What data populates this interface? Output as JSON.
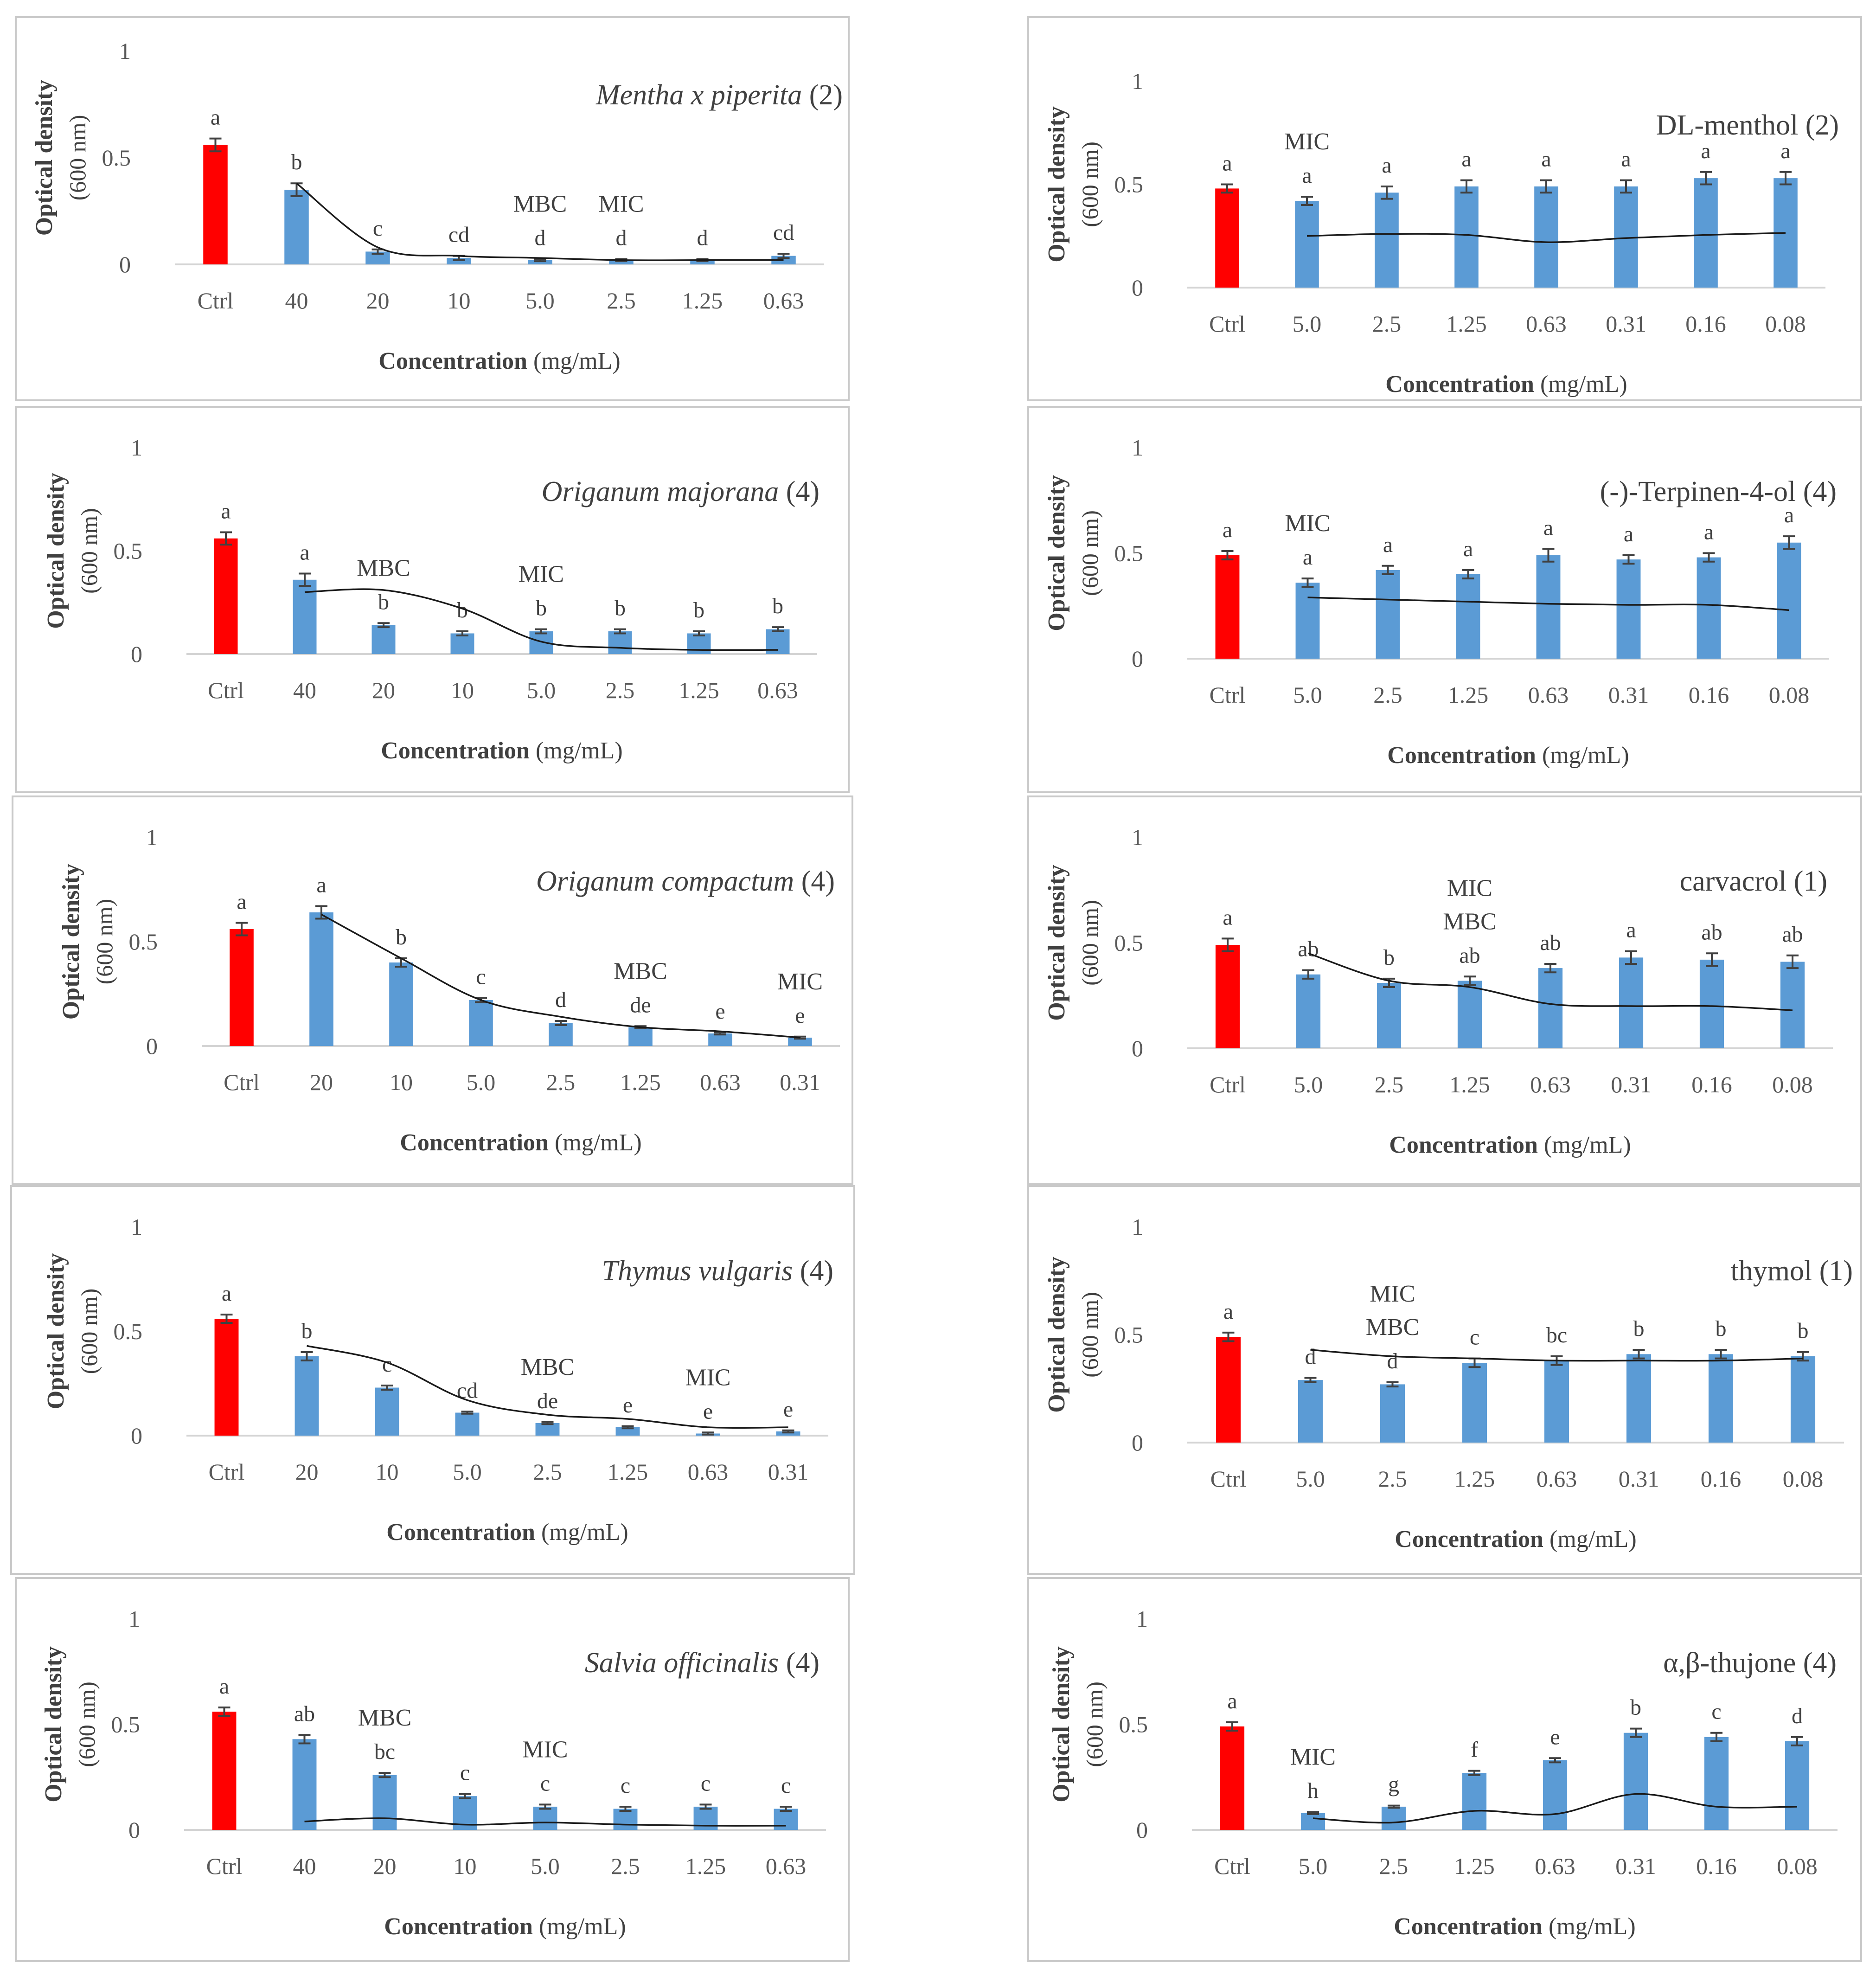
{
  "colors": {
    "control": "#ff0000",
    "treatment": "#5b9bd5",
    "line": "#1a1a1a"
  },
  "chart_data": [
    {
      "type": "bar",
      "title": "Mentha x piperita (2)",
      "title_italic": "Mentha x piperita",
      "title_plain": "(2)",
      "xlabel_bold": "Concentration",
      "xlabel_rest": "(mg/mL)",
      "ylabel": "Optical density",
      "ylabel_sub": "(600 nm)",
      "yticks": [
        "0",
        "0.5",
        "1"
      ],
      "ylim": [
        0,
        1
      ],
      "categories": [
        "Ctrl",
        "40",
        "20",
        "10",
        "5.0",
        "2.5",
        "1.25",
        "0.63"
      ],
      "values": [
        0.56,
        0.35,
        0.06,
        0.03,
        0.02,
        0.02,
        0.02,
        0.04
      ],
      "errors": [
        0.03,
        0.03,
        0.01,
        0.01,
        0.005,
        0.005,
        0.005,
        0.01
      ],
      "line": [
        null,
        0.38,
        0.08,
        0.04,
        0.03,
        0.02,
        0.02,
        0.02
      ],
      "letters": [
        "a",
        "b",
        "c",
        "cd",
        "d",
        "d",
        "d",
        "cd"
      ],
      "notes": [
        [],
        [],
        [],
        [],
        [
          "MBC"
        ],
        [
          "MIC"
        ],
        [],
        []
      ]
    },
    {
      "type": "bar",
      "title": "DL-menthol (2)",
      "title_italic": "",
      "title_plain": "DL-menthol (2)",
      "xlabel_bold": "Concentration",
      "xlabel_rest": "(mg/mL)",
      "ylabel": "Optical density",
      "ylabel_sub": "(600 nm)",
      "yticks": [
        "0",
        "0.5",
        "1"
      ],
      "ylim": [
        0,
        1
      ],
      "categories": [
        "Ctrl",
        "5.0",
        "2.5",
        "1.25",
        "0.63",
        "0.31",
        "0.16",
        "0.08"
      ],
      "values": [
        0.48,
        0.42,
        0.46,
        0.49,
        0.49,
        0.49,
        0.53,
        0.53
      ],
      "errors": [
        0.02,
        0.02,
        0.03,
        0.03,
        0.03,
        0.03,
        0.03,
        0.03
      ],
      "line": [
        null,
        0.25,
        0.26,
        0.255,
        0.22,
        0.24,
        0.255,
        0.265
      ],
      "letters": [
        "a",
        "a",
        "a",
        "a",
        "a",
        "a",
        "a",
        "a"
      ],
      "notes": [
        [],
        [
          "MIC"
        ],
        [],
        [],
        [],
        [],
        [],
        []
      ]
    },
    {
      "type": "bar",
      "title": "Origanum majorana (4)",
      "title_italic": "Origanum majorana",
      "title_plain": "(4)",
      "xlabel_bold": "Concentration",
      "xlabel_rest": "(mg/mL)",
      "ylabel": "Optical density",
      "ylabel_sub": "(600 nm)",
      "yticks": [
        "0",
        "0.5",
        "1"
      ],
      "ylim": [
        0,
        1
      ],
      "categories": [
        "Ctrl",
        "40",
        "20",
        "10",
        "5.0",
        "2.5",
        "1.25",
        "0.63"
      ],
      "values": [
        0.56,
        0.36,
        0.14,
        0.1,
        0.11,
        0.11,
        0.1,
        0.12
      ],
      "errors": [
        0.03,
        0.03,
        0.01,
        0.01,
        0.01,
        0.01,
        0.01,
        0.01
      ],
      "line": [
        null,
        0.3,
        0.31,
        0.22,
        0.06,
        0.03,
        0.02,
        0.02
      ],
      "letters": [
        "a",
        "a",
        "b",
        "b",
        "b",
        "b",
        "b",
        "b"
      ],
      "notes": [
        [],
        [],
        [
          "MBC"
        ],
        [],
        [
          "MIC"
        ],
        [],
        [],
        []
      ]
    },
    {
      "type": "bar",
      "title": "(-)-Terpinen-4-ol (4)",
      "title_italic": "",
      "title_plain": "(-)-Terpinen-4-ol (4)",
      "xlabel_bold": "Concentration",
      "xlabel_rest": "(mg/mL)",
      "ylabel": "Optical density",
      "ylabel_sub": "(600 nm)",
      "yticks": [
        "0",
        "0.5",
        "1"
      ],
      "ylim": [
        0,
        1
      ],
      "categories": [
        "Ctrl",
        "5.0",
        "2.5",
        "1.25",
        "0.63",
        "0.31",
        "0.16",
        "0.08"
      ],
      "values": [
        0.49,
        0.36,
        0.42,
        0.4,
        0.49,
        0.47,
        0.48,
        0.55
      ],
      "errors": [
        0.02,
        0.02,
        0.02,
        0.02,
        0.03,
        0.02,
        0.02,
        0.03
      ],
      "line": [
        null,
        0.29,
        0.28,
        0.27,
        0.26,
        0.255,
        0.255,
        0.23
      ],
      "letters": [
        "a",
        "a",
        "a",
        "a",
        "a",
        "a",
        "a",
        "a"
      ],
      "notes": [
        [],
        [
          "MIC"
        ],
        [],
        [],
        [],
        [],
        [],
        []
      ]
    },
    {
      "type": "bar",
      "title": "Origanum compactum (4)",
      "title_italic": "Origanum compactum",
      "title_plain": "(4)",
      "xlabel_bold": "Concentration",
      "xlabel_rest": "(mg/mL)",
      "ylabel": "Optical density",
      "ylabel_sub": "(600 nm)",
      "yticks": [
        "0",
        "0.5",
        "1"
      ],
      "ylim": [
        0,
        1
      ],
      "categories": [
        "Ctrl",
        "20",
        "10",
        "5.0",
        "2.5",
        "1.25",
        "0.63",
        "0.31"
      ],
      "values": [
        0.56,
        0.64,
        0.4,
        0.22,
        0.11,
        0.09,
        0.06,
        0.04
      ],
      "errors": [
        0.03,
        0.03,
        0.02,
        0.01,
        0.01,
        0.005,
        0.005,
        0.005
      ],
      "line": [
        null,
        0.63,
        0.42,
        0.22,
        0.14,
        0.09,
        0.07,
        0.04
      ],
      "letters": [
        "a",
        "a",
        "b",
        "c",
        "d",
        "de",
        "e",
        "e"
      ],
      "notes": [
        [],
        [],
        [],
        [],
        [],
        [
          "MBC"
        ],
        [],
        [
          "MIC"
        ]
      ]
    },
    {
      "type": "bar",
      "title": "carvacrol (1)",
      "title_italic": "",
      "title_plain": "carvacrol (1)",
      "xlabel_bold": "Concentration",
      "xlabel_rest": "(mg/mL)",
      "ylabel": "Optical density",
      "ylabel_sub": "(600 nm)",
      "yticks": [
        "0",
        "0.5",
        "1"
      ],
      "ylim": [
        0,
        1
      ],
      "categories": [
        "Ctrl",
        "5.0",
        "2.5",
        "1.25",
        "0.63",
        "0.31",
        "0.16",
        "0.08"
      ],
      "values": [
        0.49,
        0.35,
        0.31,
        0.32,
        0.38,
        0.43,
        0.42,
        0.41
      ],
      "errors": [
        0.03,
        0.02,
        0.02,
        0.02,
        0.02,
        0.03,
        0.03,
        0.03
      ],
      "line": [
        null,
        0.45,
        0.32,
        0.29,
        0.21,
        0.2,
        0.2,
        0.18
      ],
      "letters": [
        "a",
        "ab",
        "b",
        "ab",
        "ab",
        "a",
        "ab",
        "ab"
      ],
      "notes": [
        [],
        [],
        [],
        [
          "MIC",
          "MBC"
        ],
        [],
        [],
        [],
        []
      ]
    },
    {
      "type": "bar",
      "title": "Thymus vulgaris (4)",
      "title_italic": "Thymus vulgaris",
      "title_plain": "(4)",
      "xlabel_bold": "Concentration",
      "xlabel_rest": "(mg/mL)",
      "ylabel": "Optical density",
      "ylabel_sub": "(600 nm)",
      "yticks": [
        "0",
        "0.5",
        "1"
      ],
      "ylim": [
        0,
        1
      ],
      "categories": [
        "Ctrl",
        "20",
        "10",
        "5.0",
        "2.5",
        "1.25",
        "0.63",
        "0.31"
      ],
      "values": [
        0.56,
        0.38,
        0.23,
        0.11,
        0.06,
        0.04,
        0.01,
        0.02
      ],
      "errors": [
        0.02,
        0.02,
        0.01,
        0.005,
        0.005,
        0.005,
        0.005,
        0.005
      ],
      "line": [
        null,
        0.43,
        0.35,
        0.17,
        0.1,
        0.08,
        0.04,
        0.04
      ],
      "letters": [
        "a",
        "b",
        "c",
        "cd",
        "de",
        "e",
        "e",
        "e"
      ],
      "notes": [
        [],
        [],
        [],
        [],
        [
          "MBC"
        ],
        [],
        [
          "MIC"
        ],
        []
      ]
    },
    {
      "type": "bar",
      "title": "thymol (1)",
      "title_italic": "",
      "title_plain": "thymol (1)",
      "xlabel_bold": "Concentration",
      "xlabel_rest": "(mg/mL)",
      "ylabel": "Optical density",
      "ylabel_sub": "(600 nm)",
      "yticks": [
        "0",
        "0.5",
        "1"
      ],
      "ylim": [
        0,
        1
      ],
      "categories": [
        "Ctrl",
        "5.0",
        "2.5",
        "1.25",
        "0.63",
        "0.31",
        "0.16",
        "0.08"
      ],
      "values": [
        0.49,
        0.29,
        0.27,
        0.37,
        0.38,
        0.41,
        0.41,
        0.4
      ],
      "errors": [
        0.02,
        0.01,
        0.01,
        0.02,
        0.02,
        0.02,
        0.02,
        0.02
      ],
      "line": [
        null,
        0.43,
        0.4,
        0.39,
        0.38,
        0.38,
        0.38,
        0.39
      ],
      "letters": [
        "a",
        "d",
        "d",
        "c",
        "bc",
        "b",
        "b",
        "b"
      ],
      "notes": [
        [],
        [],
        [
          "MIC",
          "MBC"
        ],
        [],
        [],
        [],
        [],
        []
      ]
    },
    {
      "type": "bar",
      "title": "Salvia officinalis (4)",
      "title_italic": "Salvia officinalis",
      "title_plain": "(4)",
      "xlabel_bold": "Concentration",
      "xlabel_rest": "(mg/mL)",
      "ylabel": "Optical density",
      "ylabel_sub": "(600 nm)",
      "yticks": [
        "0",
        "0.5",
        "1"
      ],
      "ylim": [
        0,
        1
      ],
      "categories": [
        "Ctrl",
        "40",
        "20",
        "10",
        "5.0",
        "2.5",
        "1.25",
        "0.63"
      ],
      "values": [
        0.56,
        0.43,
        0.26,
        0.16,
        0.11,
        0.1,
        0.11,
        0.1
      ],
      "errors": [
        0.02,
        0.02,
        0.01,
        0.01,
        0.01,
        0.01,
        0.01,
        0.01
      ],
      "line": [
        null,
        0.04,
        0.055,
        0.025,
        0.035,
        0.025,
        0.02,
        0.02
      ],
      "letters": [
        "a",
        "ab",
        "bc",
        "c",
        "c",
        "c",
        "c",
        "c"
      ],
      "notes": [
        [],
        [],
        [
          "MBC"
        ],
        [],
        [
          "MIC"
        ],
        [],
        [],
        []
      ]
    },
    {
      "type": "bar",
      "title": "α,β-thujone (4)",
      "title_italic": "",
      "title_plain": "α,β-thujone (4)",
      "xlabel_bold": "Concentration",
      "xlabel_rest": "(mg/mL)",
      "ylabel": "Optical density",
      "ylabel_sub": "(600 nm)",
      "yticks": [
        "0",
        "0.5",
        "1"
      ],
      "ylim": [
        0,
        1
      ],
      "categories": [
        "Ctrl",
        "5.0",
        "2.5",
        "1.25",
        "0.63",
        "0.31",
        "0.16",
        "0.08"
      ],
      "values": [
        0.49,
        0.08,
        0.11,
        0.27,
        0.33,
        0.46,
        0.44,
        0.42
      ],
      "errors": [
        0.02,
        0.005,
        0.005,
        0.01,
        0.01,
        0.02,
        0.02,
        0.02
      ],
      "line": [
        null,
        0.055,
        0.035,
        0.09,
        0.075,
        0.17,
        0.11,
        0.11
      ],
      "letters": [
        "a",
        "h",
        "g",
        "f",
        "e",
        "b",
        "c",
        "d"
      ],
      "notes": [
        [],
        [
          "MIC"
        ],
        [],
        [],
        [],
        [],
        [],
        []
      ]
    }
  ]
}
